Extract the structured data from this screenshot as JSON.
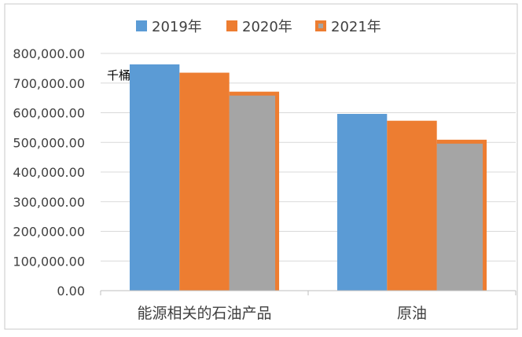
{
  "chart_data": {
    "type": "bar",
    "unit_label": "千桶",
    "categories": [
      "能源相关的石油产品",
      "原油"
    ],
    "series": [
      {
        "name": "2019年",
        "color": "#5B9BD5",
        "values": [
          763000,
          596000
        ]
      },
      {
        "name": "2020年",
        "color": "#ED7D31",
        "values": [
          735000,
          573000
        ]
      },
      {
        "name": "2021年",
        "color": "#A5A5A5",
        "accent": "#ED7D31",
        "values": [
          671000,
          509000
        ]
      }
    ],
    "ylim": [
      0,
      800000
    ],
    "yticks": [
      "0.00",
      "100,000.00",
      "200,000.00",
      "300,000.00",
      "400,000.00",
      "500,000.00",
      "600,000.00",
      "700,000.00",
      "800,000.00"
    ],
    "grid": true,
    "legend_position": "top"
  }
}
